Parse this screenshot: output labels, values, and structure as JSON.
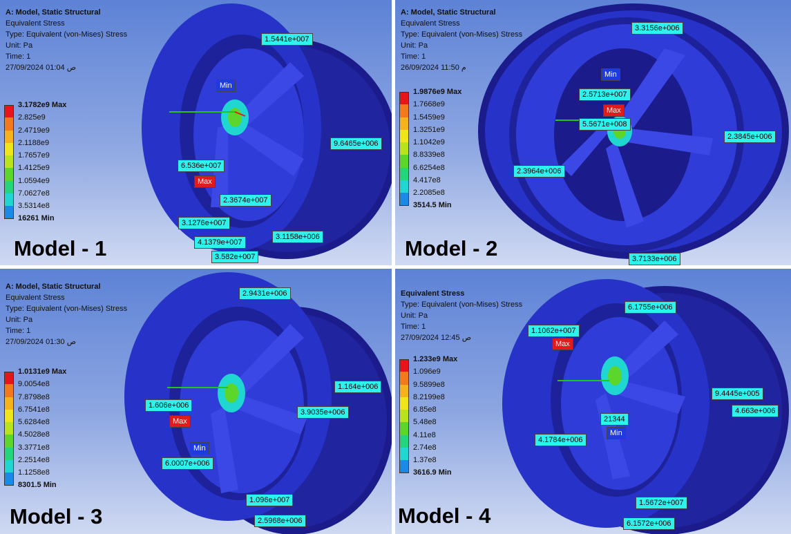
{
  "panels": [
    {
      "info": [
        "A: Model, Static Structural",
        "Equivalent Stress",
        "Type: Equivalent (von-Mises) Stress",
        "Unit: Pa",
        "Time: 1",
        "27/09/2024 01:04 ص"
      ],
      "legend": [
        "3.1782e9 Max",
        "2.825e9",
        "2.4719e9",
        "2.1188e9",
        "1.7657e9",
        "1.4125e9",
        "1.0594e9",
        "7.0627e8",
        "3.5314e8",
        "16261 Min"
      ],
      "legend_extra": "",
      "label": "Model - 1",
      "callouts": [
        "1.5441e+007",
        "Min",
        "9.6465e+006",
        "6.536e+007",
        "Max",
        "2.3674e+007",
        "3.1276e+007",
        "3.1158e+006",
        "4.1379e+007",
        "3.582e+007"
      ]
    },
    {
      "info": [
        "A: Model, Static Structural",
        "Equivalent Stress",
        "Type: Equivalent (von-Mises) Stress",
        "Unit: Pa",
        "Time: 1",
        "26/09/2024 11:50 م"
      ],
      "legend": [
        "1.9876e9 Max",
        "1.7668e9",
        "1.5459e9",
        "1.3251e9",
        "1.1042e9",
        "8.8339e8",
        "6.6254e8",
        "4.417e8",
        "2.2085e8"
      ],
      "legend_extra": "3514.5 Min",
      "label": "Model - 2",
      "callouts": [
        "3.3156e+006",
        "Min",
        "2.5713e+007",
        "Max",
        "5.5671e+008",
        "2.3845e+006",
        "2.3964e+006",
        "3.7133e+006"
      ]
    },
    {
      "info": [
        "A: Model, Static Structural",
        "Equivalent Stress",
        "Type: Equivalent (von-Mises) Stress",
        "Unit: Pa",
        "Time: 1",
        "27/09/2024 01:30 ص"
      ],
      "legend": [
        "1.0131e9 Max",
        "9.0054e8",
        "7.8798e8",
        "6.7541e8",
        "5.6284e8",
        "4.5028e8",
        "3.3771e8",
        "2.2514e8",
        "1.1258e8"
      ],
      "legend_extra": "8301.5 Min",
      "label": "Model - 3",
      "callouts": [
        "2.9431e+006",
        "1.164e+006",
        "1.606e+006",
        "Max",
        "3.9035e+006",
        "Min",
        "6.0007e+006",
        "1.096e+007",
        "2.5968e+006"
      ]
    },
    {
      "info": [
        "Equivalent Stress",
        "Type: Equivalent (von-Mises) Stress",
        "Unit: Pa",
        "Time: 1",
        "27/09/2024 12:45 ص"
      ],
      "legend": [
        "1.233e9 Max",
        "1.096e9",
        "9.5899e8",
        "8.2199e8",
        "6.85e8",
        "5.48e8",
        "4.11e8",
        "2.74e8",
        "1.37e8"
      ],
      "legend_extra": "3616.9 Min",
      "label": "Model - 4",
      "callouts": [
        "6.1755e+006",
        "1.1062e+007",
        "Max",
        "9.4445e+005",
        "4.663e+006",
        "21344",
        "Min",
        "4.1784e+006",
        "1.5672e+007",
        "6.1572e+006"
      ]
    }
  ],
  "legend_colors": [
    "#e8141b",
    "#f27a1d",
    "#f5b21c",
    "#eee51b",
    "#b9e31d",
    "#5cd62a",
    "#23d67e",
    "#1fd6d1",
    "#1b8ae6",
    "#1a1ee6"
  ],
  "colors": {
    "rim_dark": "#1b1b8c",
    "rim": "#2632c8",
    "rim_light": "#3b48e6",
    "callout": "#2ef2ee"
  }
}
